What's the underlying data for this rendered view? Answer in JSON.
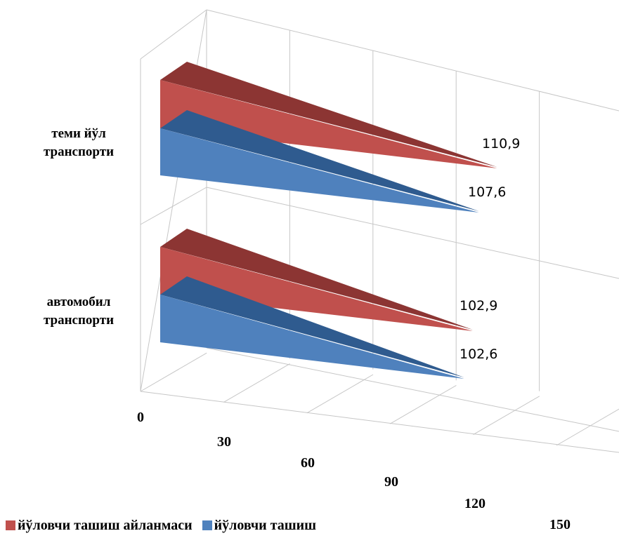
{
  "chart_data": {
    "type": "bar",
    "orientation": "horizontal",
    "style": "3d-pyramid",
    "categories": [
      "автомобил транспорти",
      "теми йўл транспорти"
    ],
    "category_lines": [
      [
        "автомобил",
        "транспорти"
      ],
      [
        "теми йўл",
        "транспорти"
      ]
    ],
    "series": [
      {
        "name": "йўловчи ташиш",
        "values": [
          102.6,
          107.6
        ],
        "labels": [
          "102,6",
          "107,6"
        ],
        "color": "#4f81bd",
        "color_dark": "#2f5b8f"
      },
      {
        "name": "йўловчи ташиш айланмаси",
        "values": [
          102.9,
          110.9
        ],
        "labels": [
          "102,9",
          "110,9"
        ],
        "color": "#c0504d",
        "color_dark": "#8c3533"
      }
    ],
    "x_ticks": [
      "0",
      "30",
      "60",
      "90",
      "120",
      "150"
    ],
    "xlim": [
      0,
      150
    ],
    "grid": true,
    "legend_position": "bottom-left"
  }
}
